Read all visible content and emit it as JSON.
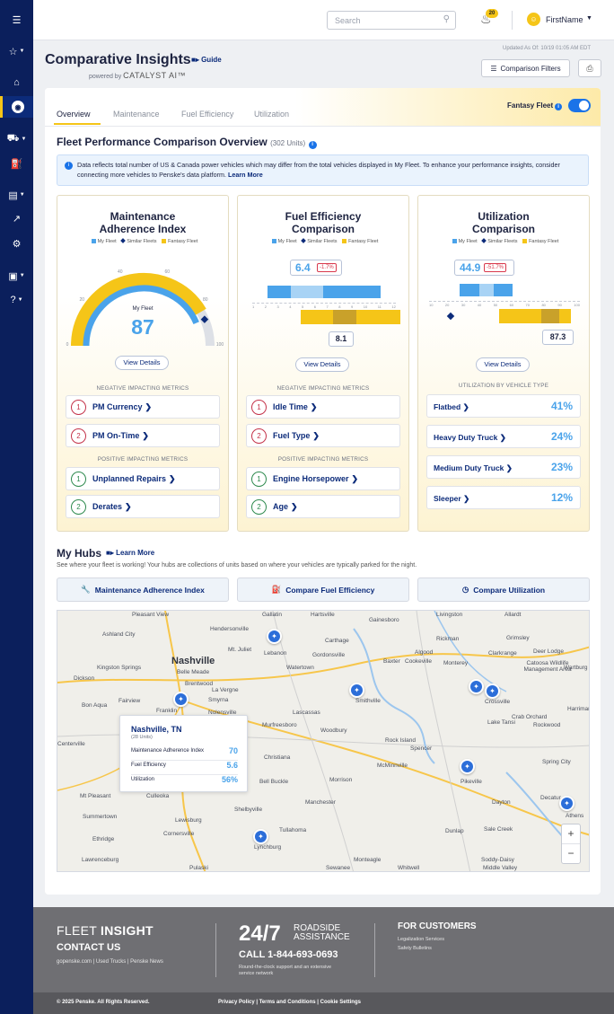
{
  "header": {
    "search_placeholder": "Search",
    "notification_count": "20",
    "user_name": "FirstName"
  },
  "page": {
    "updated": "Updated As Of: 10/19 01:05 AM EDT",
    "title": "Comparative Insights",
    "guide_label": "Guide",
    "powered_by": "powered by",
    "powered_brand": "CATALYST AI™",
    "comparison_filters": "Comparison Filters"
  },
  "tabs": [
    {
      "label": "Overview",
      "active": true
    },
    {
      "label": "Maintenance",
      "active": false
    },
    {
      "label": "Fuel Efficiency",
      "active": false
    },
    {
      "label": "Utilization",
      "active": false
    }
  ],
  "fantasy_fleet": {
    "label": "Fantasy Fleet",
    "enabled": true
  },
  "overview": {
    "title": "Fleet Performance Comparison Overview",
    "units": "(302 Units)",
    "notice": "Data reflects total number of US & Canada power vehicles which may differ from the total vehicles displayed in My Fleet. To enhance your performance insights, consider connecting more vehicles to Penske's data platform.",
    "notice_link": "Learn More"
  },
  "legend": {
    "my_fleet": "My Fleet",
    "similar": "Similar Fleets",
    "fantasy": "Fantasy Fleet"
  },
  "colors": {
    "my_fleet": "#4aa3ea",
    "similar": "#0c2b7a",
    "fantasy": "#f5c518",
    "negative": "#c4334a",
    "positive": "#2e8a4e"
  },
  "maintenance": {
    "title_line1": "Maintenance",
    "title_line2": "Adherence Index",
    "gauge_ticks": [
      "0",
      "20",
      "40",
      "60",
      "80",
      "100"
    ],
    "my_fleet_label": "My Fleet",
    "my_fleet_value": "87",
    "fantasy_value": 100,
    "similar_value": 87,
    "view_details": "View Details",
    "negative_head": "NEGATIVE IMPACTING METRICS",
    "positive_head": "POSITIVE IMPACTING METRICS",
    "negative": [
      {
        "n": "1",
        "label": "PM Currency"
      },
      {
        "n": "2",
        "label": "PM On-Time"
      }
    ],
    "positive": [
      {
        "n": "1",
        "label": "Unplanned Repairs"
      },
      {
        "n": "2",
        "label": "Derates"
      }
    ]
  },
  "fuel": {
    "title_line1": "Fuel Efficiency",
    "title_line2": "Comparison",
    "my_fleet_value": "6.4",
    "delta": "-1.7%",
    "fantasy_value": "8.1",
    "axis": [
      "1",
      "2",
      "3",
      "4",
      "5",
      "6",
      "7",
      "8",
      "9",
      "10",
      "11",
      "12"
    ],
    "view_details": "View Details",
    "negative_head": "NEGATIVE IMPACTING METRICS",
    "positive_head": "POSITIVE IMPACTING METRICS",
    "negative": [
      {
        "n": "1",
        "label": "Idle Time"
      },
      {
        "n": "2",
        "label": "Fuel Type"
      }
    ],
    "positive": [
      {
        "n": "1",
        "label": "Engine Horsepower"
      },
      {
        "n": "2",
        "label": "Age"
      }
    ]
  },
  "utilization": {
    "title_line1": "Utilization",
    "title_line2": "Comparison",
    "my_fleet_value": "44.9",
    "delta": "-51.7%",
    "fantasy_value": "87.3",
    "axis": [
      "10",
      "20",
      "30",
      "40",
      "50",
      "60",
      "70",
      "80",
      "90",
      "100"
    ],
    "view_details": "View Details",
    "type_head": "UTILIZATION BY VEHICLE TYPE",
    "types": [
      {
        "label": "Flatbed",
        "pct": "41%"
      },
      {
        "label": "Heavy Duty Truck",
        "pct": "24%"
      },
      {
        "label": "Medium Duty Truck",
        "pct": "23%"
      },
      {
        "label": "Sleeper",
        "pct": "12%"
      }
    ]
  },
  "hubs": {
    "title": "My Hubs",
    "learn_more": "Learn More",
    "desc": "See where your fleet is working! Your hubs are collections of units based on where your vehicles are typically parked for the night.",
    "buttons": [
      "Maintenance Adherence Index",
      "Compare Fuel Efficiency",
      "Compare Utilization"
    ],
    "map_labels": [
      "Pleasant View",
      "Hendersonville",
      "Gallatin",
      "Hartsville",
      "Gainesboro",
      "Livingston",
      "Allardt",
      "Ashland City",
      "Lebanon",
      "Carthage",
      "Gordonsville",
      "Rickman",
      "Grimsley",
      "Mt. Juliet",
      "Algood",
      "Clarkrange",
      "Deer Lodge",
      "Nashville",
      "Watertown",
      "Baxter",
      "Cookeville",
      "Monterey",
      "Kingston Springs",
      "Belle Meade",
      "Dickson",
      "Brentwood",
      "Catoosa Wildlife Management Area",
      "Wartburg",
      "La Vergne",
      "Smyrna",
      "Smithville",
      "Bon Aqua",
      "Fairview",
      "Franklin",
      "Nolensville",
      "Crossville",
      "Lascassas",
      "Lake Tansi",
      "Crab Orchard",
      "Harriman",
      "Rockwood",
      "Murfreesboro",
      "Woodbury",
      "Rock Island",
      "Centerville",
      "Spencer",
      "Christiana",
      "McMinnville",
      "Spring City",
      "Bell Buckle",
      "Morrison",
      "Pikeville",
      "Mt Pleasant",
      "Culleoka",
      "Shelbyville",
      "Manchester",
      "Dayton",
      "Decatur",
      "Summertown",
      "Lewisburg",
      "Athens",
      "Cornersville",
      "Tullahoma",
      "Dunlap",
      "Sale Creek",
      "Ethridge",
      "Lynchburg",
      "Monteagle",
      "Soddy-Daisy",
      "Lawrenceburg",
      "Pulaski",
      "Sewanee",
      "Whitwell",
      "Middle Valley"
    ],
    "popup": {
      "city": "Nashville, TN",
      "units": "(28 Units)",
      "rows": [
        {
          "label": "Maintenance Adherence Index",
          "value": "70"
        },
        {
          "label": "Fuel Efficiency",
          "value": "5.6"
        },
        {
          "label": "Utilization",
          "value": "56%"
        }
      ]
    }
  },
  "footer": {
    "brand_light": "FLEET ",
    "brand_bold": "INSIGHT",
    "contact": "CONTACT US",
    "links": "gopenske.com  |  Used Trucks  |  Penske News",
    "big": "24/7",
    "roadside": "ROADSIDE",
    "assistance": "ASSISTANCE",
    "call": "CALL 1-844-693-0693",
    "road_sub": "Round-the-clock support and an extensive service network",
    "customers": "FOR CUSTOMERS",
    "cust_links": [
      "Legalization Services",
      "Safety Bulletins"
    ],
    "copyright": "© 2025 Penske. All Rights Reserved.",
    "legal": "Privacy Policy  |  Terms and Conditions  |  Cookie Settings"
  }
}
